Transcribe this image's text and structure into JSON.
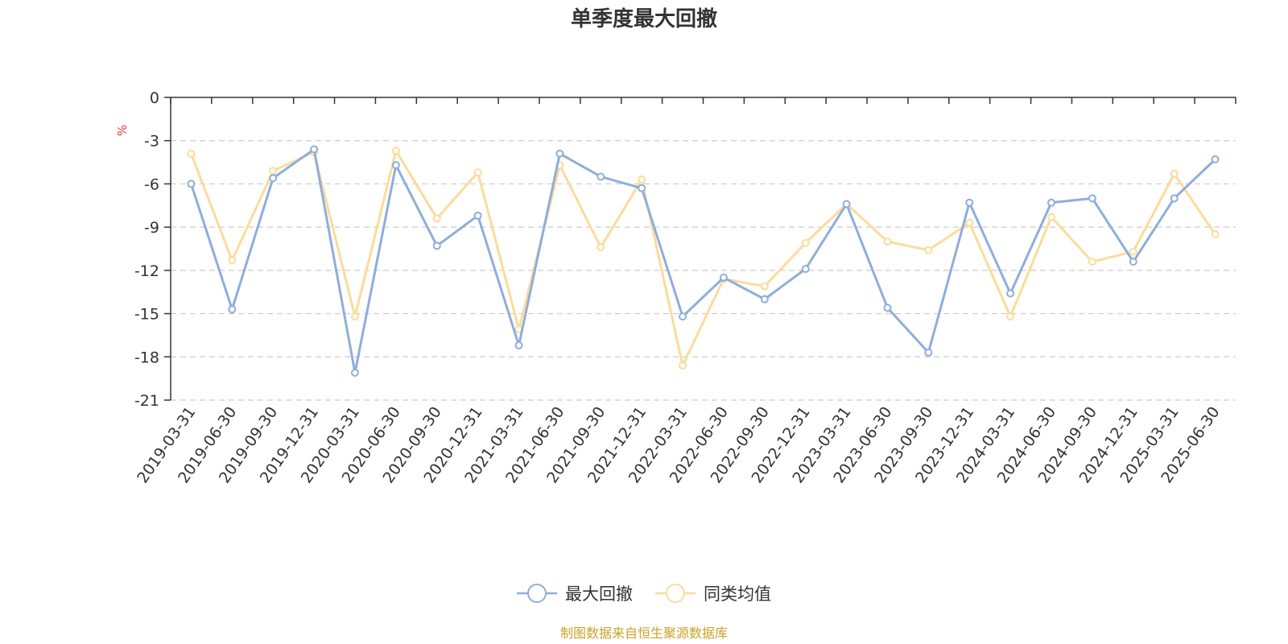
{
  "chart_data": {
    "type": "line",
    "title": "单季度最大回撤",
    "ylabel": "%",
    "ylim": [
      -21,
      0
    ],
    "yticks": [
      0,
      -3,
      -6,
      -9,
      -12,
      -15,
      -18,
      -21
    ],
    "grid": true,
    "legend_position": "bottom-center",
    "categories": [
      "2019-03-31",
      "2019-06-30",
      "2019-09-30",
      "2019-12-31",
      "2020-03-31",
      "2020-06-30",
      "2020-09-30",
      "2020-12-31",
      "2021-03-31",
      "2021-06-30",
      "2021-09-30",
      "2021-12-31",
      "2022-03-31",
      "2022-06-30",
      "2022-09-30",
      "2022-12-31",
      "2023-03-31",
      "2023-06-30",
      "2023-09-30",
      "2023-12-31",
      "2024-03-31",
      "2024-06-30",
      "2024-09-30",
      "2024-12-31",
      "2025-03-31",
      "2025-06-30"
    ],
    "series": [
      {
        "name": "最大回撤",
        "color": "#8eaedc",
        "values": [
          -6.0,
          -14.7,
          -5.6,
          -3.6,
          -19.1,
          -4.7,
          -10.3,
          -8.2,
          -17.2,
          -3.9,
          -5.5,
          -6.3,
          -15.2,
          -12.5,
          -14.0,
          -11.9,
          -7.4,
          -14.6,
          -17.7,
          -7.3,
          -13.6,
          -7.3,
          -7.0,
          -11.4,
          -7.0,
          -4.3
        ]
      },
      {
        "name": "同类均值",
        "color": "#fcdb9a",
        "values": [
          -3.9,
          -11.3,
          -5.1,
          -3.8,
          -15.2,
          -3.7,
          -8.4,
          -5.2,
          -16.1,
          -4.7,
          -10.4,
          -5.7,
          -18.6,
          -12.6,
          -13.1,
          -10.1,
          -7.4,
          -10.0,
          -10.6,
          -8.7,
          -15.2,
          -8.3,
          -11.4,
          -10.7,
          -5.3,
          -9.5
        ]
      }
    ]
  },
  "colors": {
    "axis": "#333333",
    "grid": "#cccccc",
    "unit": "#e53935",
    "source": "#c9a227"
  },
  "source_text": "制图数据来自恒生聚源数据库"
}
